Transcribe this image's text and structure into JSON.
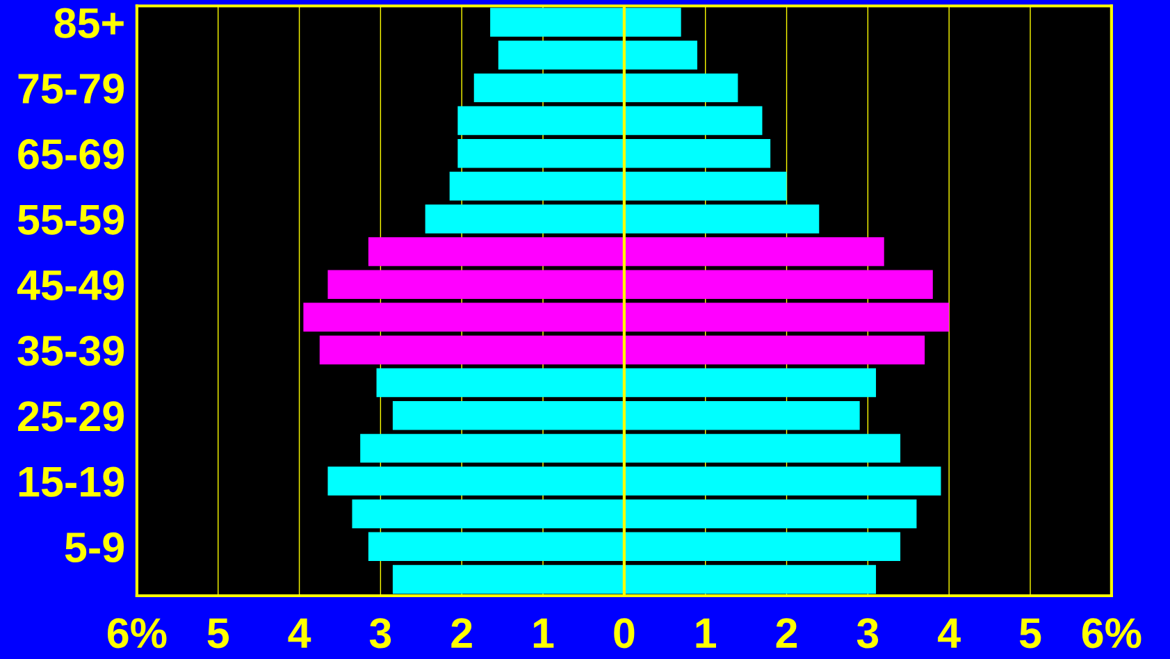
{
  "chart_data": {
    "type": "bar",
    "orientation": "horizontal",
    "stacked": true,
    "categories": [
      "85+",
      null,
      "75-79",
      null,
      "65-69",
      null,
      "55-59",
      null,
      "45-49",
      null,
      "35-39",
      null,
      "25-29",
      null,
      "15-19",
      null,
      "5-9",
      null
    ],
    "series": [
      {
        "values": [
          -1.65,
          -1.55,
          -1.85,
          -2.05,
          -2.05,
          -2.15,
          -2.45,
          -3.15,
          -3.65,
          -3.95,
          -3.75,
          -3.05,
          -2.85,
          -3.25,
          -3.65,
          -3.35,
          -3.15,
          -2.85
        ],
        "colors": [
          "#00ffff",
          "#00ffff",
          "#00ffff",
          "#00ffff",
          "#00ffff",
          "#00ffff",
          "#00ffff",
          "#ff00ff",
          "#ff00ff",
          "#ff00ff",
          "#ff00ff",
          "#00ffff",
          "#00ffff",
          "#00ffff",
          "#00ffff",
          "#00ffff",
          "#00ffff",
          "#00ffff"
        ]
      },
      {
        "values": [
          0.7,
          0.9,
          1.4,
          1.7,
          1.8,
          2.0,
          2.4,
          3.2,
          3.8,
          4.0,
          3.7,
          3.1,
          2.9,
          3.4,
          3.9,
          3.6,
          3.4,
          3.1
        ],
        "colors": [
          "#00ffff",
          "#00ffff",
          "#00ffff",
          "#00ffff",
          "#00ffff",
          "#00ffff",
          "#00ffff",
          "#ff00ff",
          "#ff00ff",
          "#ff00ff",
          "#ff00ff",
          "#00ffff",
          "#00ffff",
          "#00ffff",
          "#00ffff",
          "#00ffff",
          "#00ffff",
          "#00ffff"
        ]
      }
    ],
    "xlim": [
      -6,
      6
    ],
    "xticks": [
      {
        "value": -6,
        "label": "6%"
      },
      {
        "value": -5,
        "label": "5"
      },
      {
        "value": -4,
        "label": "4"
      },
      {
        "value": -3,
        "label": "3"
      },
      {
        "value": -2,
        "label": "2"
      },
      {
        "value": -1,
        "label": "1"
      },
      0,
      1,
      2,
      3,
      4,
      5,
      {
        "value": 6,
        "label": "6%"
      }
    ],
    "grid": "x",
    "ref_lines": [
      {
        "axis": "x",
        "value": 0,
        "color": "#ffff00"
      }
    ]
  }
}
